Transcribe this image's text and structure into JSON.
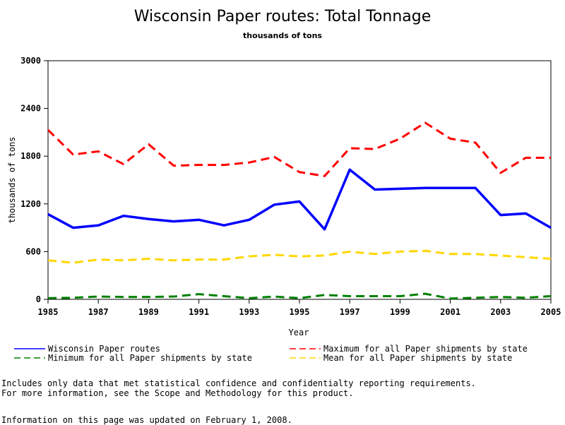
{
  "chart_data": {
    "type": "line",
    "title": "Wisconsin Paper routes: Total Tonnage",
    "subtitle": "thousands of tons",
    "xlabel": "Year",
    "ylabel": "thousands of tons",
    "xlim": [
      1985,
      2005
    ],
    "ylim": [
      0,
      3000
    ],
    "x_ticks": [
      1985,
      1987,
      1989,
      1991,
      1993,
      1995,
      1997,
      1999,
      2001,
      2003,
      2005
    ],
    "y_ticks": [
      0,
      600,
      1200,
      1800,
      2400,
      3000
    ],
    "x": [
      1985,
      1986,
      1987,
      1988,
      1989,
      1990,
      1991,
      1992,
      1993,
      1994,
      1995,
      1996,
      1997,
      1998,
      1999,
      2000,
      2001,
      2002,
      2003,
      2004,
      2005
    ],
    "series": [
      {
        "name": "Wisconsin Paper routes",
        "color": "#0000ff",
        "style": "solid",
        "values": [
          1070,
          900,
          930,
          1050,
          1010,
          980,
          1000,
          930,
          1000,
          1190,
          1230,
          880,
          1630,
          1380,
          1390,
          1400,
          1400,
          1400,
          1060,
          1080,
          900
        ]
      },
      {
        "name": "Maximum for all Paper shipments by state",
        "color": "#ff0000",
        "style": "dashed",
        "values": [
          2130,
          1820,
          1860,
          1700,
          1950,
          1680,
          1690,
          1690,
          1720,
          1790,
          1600,
          1550,
          1900,
          1890,
          2020,
          2220,
          2020,
          1970,
          1590,
          1780,
          1780
        ]
      },
      {
        "name": "Minimum for all Paper shipments by state",
        "color": "#008000",
        "style": "dashed",
        "values": [
          15,
          20,
          35,
          30,
          30,
          35,
          65,
          40,
          15,
          35,
          15,
          55,
          40,
          40,
          40,
          70,
          10,
          20,
          30,
          20,
          40
        ]
      },
      {
        "name": "Mean for all Paper shipments by state",
        "color": "#ffd700",
        "style": "dashed",
        "values": [
          490,
          460,
          500,
          490,
          510,
          490,
          500,
          500,
          540,
          560,
          540,
          550,
          600,
          570,
          600,
          610,
          570,
          570,
          550,
          530,
          510
        ]
      }
    ]
  },
  "notes": {
    "line1": "Includes only data that met statistical confidence and confidentialty reporting requirements.",
    "line2": "For more information, see the Scope and Methodology for this product.",
    "updated": "Information on this page was updated on February 1, 2008."
  }
}
